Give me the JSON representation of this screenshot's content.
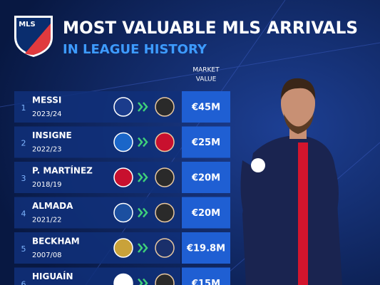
{
  "header": {
    "logo": "MLS",
    "title": "MOST VALUABLE MLS ARRIVALS",
    "subtitle": "IN LEAGUE HISTORY"
  },
  "table": {
    "column_header": [
      "MARKET",
      "VALUE"
    ],
    "rows": [
      {
        "rank": "1",
        "name": "MESSI",
        "season": "2023/24",
        "value": "€45M"
      },
      {
        "rank": "2",
        "name": "INSIGNE",
        "season": "2022/23",
        "value": "€25M"
      },
      {
        "rank": "3",
        "name": "P. MARTÍNEZ",
        "season": "2018/19",
        "value": "€20M"
      },
      {
        "rank": "4",
        "name": "ALMADA",
        "season": "2021/22",
        "value": "€20M"
      },
      {
        "rank": "5",
        "name": "BECKHAM",
        "season": "2007/08",
        "value": "€19.8M"
      },
      {
        "rank": "6",
        "name": "HIGUAÍN",
        "value": "€15M"
      }
    ]
  }
}
